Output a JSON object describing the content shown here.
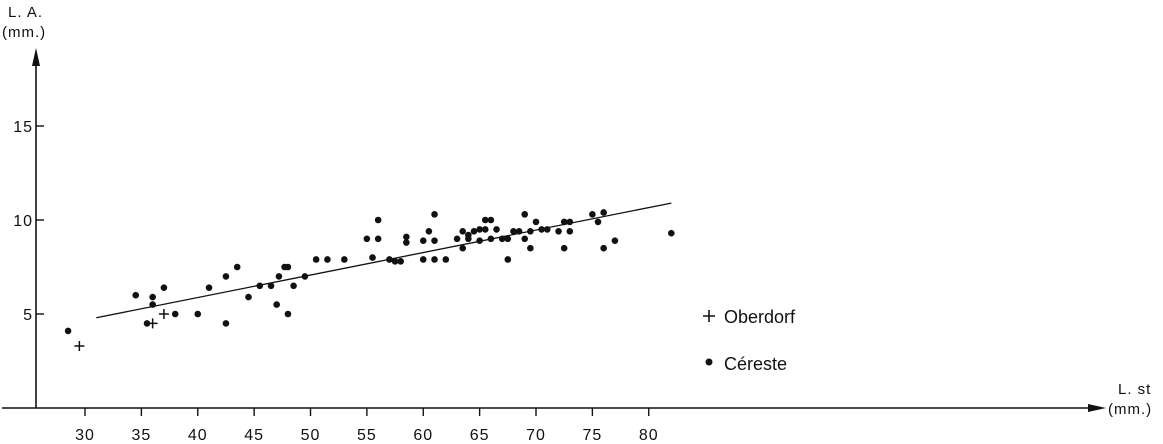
{
  "chart_data": {
    "type": "scatter",
    "title": "",
    "xlabel": "L. st",
    "xlabel_unit": "(mm.)",
    "ylabel": "L. A.",
    "ylabel_unit": "(mm.)",
    "xlim": [
      27,
      86
    ],
    "ylim": [
      0,
      21
    ],
    "x_ticks": [
      30,
      35,
      40,
      45,
      50,
      55,
      60,
      65,
      70,
      75,
      80
    ],
    "x_tick_labels": [
      "30",
      "35",
      "40",
      "45",
      "50",
      "55",
      "60",
      "65",
      "70",
      "75",
      "80"
    ],
    "y_ticks": [
      5,
      10,
      15
    ],
    "y_tick_labels": [
      "5",
      "10",
      "15"
    ],
    "grid": false,
    "legend_position": "center-right",
    "series": [
      {
        "name": "Oberdorf",
        "marker": "plus",
        "points": [
          [
            29.5,
            3.3
          ],
          [
            36,
            4.5
          ],
          [
            37,
            5.0
          ]
        ]
      },
      {
        "name": "Céreste",
        "marker": "dot",
        "points": [
          [
            28.5,
            4.1
          ],
          [
            34.5,
            6.0
          ],
          [
            35.5,
            4.5
          ],
          [
            36,
            5.5
          ],
          [
            36,
            5.9
          ],
          [
            37,
            6.4
          ],
          [
            38,
            5.0
          ],
          [
            40,
            5.0
          ],
          [
            41,
            6.4
          ],
          [
            42.5,
            4.5
          ],
          [
            42.5,
            7.0
          ],
          [
            43.5,
            7.5
          ],
          [
            44.5,
            5.9
          ],
          [
            45.5,
            6.5
          ],
          [
            46.5,
            6.5
          ],
          [
            47,
            5.5
          ],
          [
            47.2,
            7.0
          ],
          [
            47.7,
            7.5
          ],
          [
            48,
            7.5
          ],
          [
            48,
            5.0
          ],
          [
            48.5,
            6.5
          ],
          [
            49.5,
            7.0
          ],
          [
            50.5,
            7.9
          ],
          [
            51.5,
            7.9
          ],
          [
            53,
            7.9
          ],
          [
            55,
            9.0
          ],
          [
            55.5,
            8.0
          ],
          [
            56,
            10.0
          ],
          [
            56,
            9.0
          ],
          [
            57,
            7.9
          ],
          [
            57.5,
            7.8
          ],
          [
            58,
            7.8
          ],
          [
            58.5,
            8.8
          ],
          [
            58.5,
            9.1
          ],
          [
            60,
            7.9
          ],
          [
            60,
            8.9
          ],
          [
            60.5,
            9.4
          ],
          [
            61,
            10.3
          ],
          [
            61,
            8.9
          ],
          [
            61,
            7.9
          ],
          [
            62,
            7.9
          ],
          [
            63,
            9.0
          ],
          [
            63.5,
            8.5
          ],
          [
            63.5,
            9.4
          ],
          [
            64,
            9.0
          ],
          [
            64,
            9.2
          ],
          [
            64.5,
            9.4
          ],
          [
            65,
            8.9
          ],
          [
            65,
            9.5
          ],
          [
            65.5,
            10.0
          ],
          [
            65.5,
            9.5
          ],
          [
            66,
            9.0
          ],
          [
            66,
            10.0
          ],
          [
            66.5,
            9.5
          ],
          [
            67,
            9.0
          ],
          [
            67.5,
            7.9
          ],
          [
            67.5,
            9.0
          ],
          [
            68,
            9.4
          ],
          [
            68.5,
            9.4
          ],
          [
            69,
            10.3
          ],
          [
            69,
            9.0
          ],
          [
            69.5,
            8.5
          ],
          [
            69.5,
            9.4
          ],
          [
            70,
            9.9
          ],
          [
            70.5,
            9.5
          ],
          [
            71,
            9.5
          ],
          [
            72,
            9.4
          ],
          [
            72.5,
            8.5
          ],
          [
            72.5,
            9.9
          ],
          [
            73,
            9.4
          ],
          [
            73,
            9.9
          ],
          [
            75,
            10.3
          ],
          [
            75.5,
            9.9
          ],
          [
            76,
            10.4
          ],
          [
            76,
            8.5
          ],
          [
            77,
            8.9
          ],
          [
            82,
            9.3
          ]
        ]
      }
    ],
    "regression_line": {
      "from": [
        31,
        4.8
      ],
      "to": [
        82,
        10.9
      ]
    }
  }
}
